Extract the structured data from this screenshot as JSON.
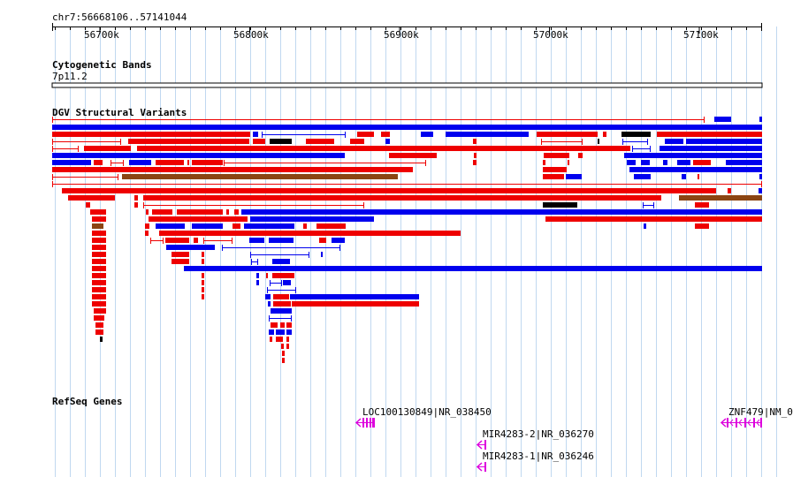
{
  "location": "chr7:56668106..57141044",
  "colors": {
    "gain": "#0000ee",
    "loss": "#ee0000",
    "gain_loss": "#8b4513",
    "inversion": "#000000",
    "gene": "#dd00dd",
    "grid": "#c0d8f0"
  },
  "ruler": {
    "ticks": [
      {
        "label": "56700k",
        "bp": 56700000
      },
      {
        "label": "56800k",
        "bp": 56800000
      },
      {
        "label": "56900k",
        "bp": 56900000
      },
      {
        "label": "57000k",
        "bp": 57000000
      },
      {
        "label": "57100k",
        "bp": 57100000
      }
    ]
  },
  "tracks": {
    "cytoband": {
      "title": "Cytogenetic Bands",
      "band_label": "7p11.2"
    },
    "dgv": {
      "title": "DGV Structural Variants"
    },
    "refseq": {
      "title": "RefSeq Genes",
      "genes": [
        {
          "label": "LOC100130849|NR_038450",
          "strand": "minus"
        },
        {
          "label": "MIR4283-2|NR_036270",
          "strand": "minus"
        },
        {
          "label": "MIR4283-1|NR_036246",
          "strand": "minus"
        },
        {
          "label": "ZNF479|NM_0",
          "strand": "minus"
        }
      ]
    }
  }
}
